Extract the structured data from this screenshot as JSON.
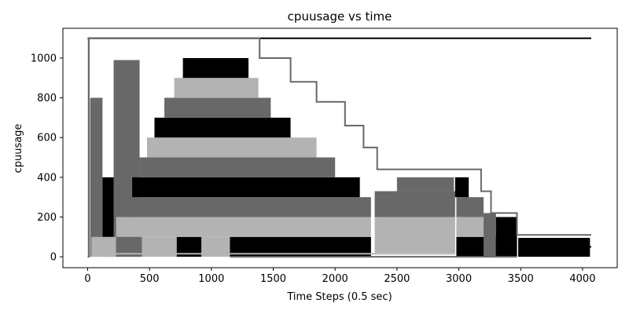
{
  "chart_data": {
    "type": "line",
    "title": "cpuusage vs time",
    "xlabel": "Time Steps (0.5 sec)",
    "ylabel": "cpuusage",
    "xlim": [
      -200,
      4280
    ],
    "ylim": [
      -55,
      1150
    ],
    "xticks": [
      0,
      500,
      1000,
      1500,
      2000,
      2500,
      3000,
      3500,
      4000
    ],
    "yticks": [
      0,
      200,
      400,
      600,
      800,
      1000
    ],
    "grid": false,
    "legend": "none",
    "colors": [
      "#000000",
      "#686868",
      "#b3b3b3"
    ],
    "series": [
      {
        "color": "#000000",
        "x": [
          0,
          4070
        ],
        "y": [
          1100,
          1100
        ]
      },
      {
        "color": "#686868",
        "x": [
          0,
          10,
          10,
          1390,
          1390,
          1640,
          1640,
          1850,
          1850,
          2080,
          2080,
          2230,
          2230,
          2340,
          2340,
          2960,
          2960,
          3180,
          3180,
          3260,
          3260,
          3470,
          3470,
          4070
        ],
        "y": [
          0,
          0,
          1100,
          1100,
          1000,
          1000,
          880,
          880,
          780,
          780,
          660,
          660,
          550,
          550,
          440,
          440,
          440,
          440,
          330,
          330,
          220,
          220,
          110,
          110
        ]
      },
      {
        "color": "#686868",
        "x": [
          1150,
          3470
        ],
        "y": [
          0,
          0
        ]
      },
      {
        "color": "#000000",
        "x": [
          3480,
          4070
        ],
        "y": [
          50,
          50
        ]
      },
      {
        "color": "#b3b3b3",
        "x": [
          40,
          2970
        ],
        "y": [
          15,
          15
        ]
      }
    ],
    "blocks": [
      {
        "color": "#b3b3b3",
        "x": [
          0,
          10
        ],
        "y": [
          0,
          1100
        ]
      },
      {
        "color": "#686868",
        "x": [
          20,
          120
        ],
        "y": [
          0,
          800
        ]
      },
      {
        "color": "#000000",
        "x": [
          120,
          210
        ],
        "y": [
          0,
          400
        ]
      },
      {
        "color": "#686868",
        "x": [
          210,
          420
        ],
        "y": [
          0,
          990
        ]
      },
      {
        "color": "#b3b3b3",
        "x": [
          30,
          230
        ],
        "y": [
          0,
          100
        ]
      },
      {
        "color": "#686868",
        "x": [
          230,
          440
        ],
        "y": [
          0,
          100
        ]
      },
      {
        "color": "#b3b3b3",
        "x": [
          440,
          720
        ],
        "y": [
          0,
          100
        ]
      },
      {
        "color": "#000000",
        "x": [
          720,
          920
        ],
        "y": [
          0,
          100
        ]
      },
      {
        "color": "#b3b3b3",
        "x": [
          920,
          1150
        ],
        "y": [
          0,
          100
        ]
      },
      {
        "color": "#000000",
        "x": [
          1150,
          2290
        ],
        "y": [
          0,
          100
        ]
      },
      {
        "color": "#b3b3b3",
        "x": [
          230,
          2290
        ],
        "y": [
          100,
          200
        ]
      },
      {
        "color": "#686868",
        "x": [
          300,
          2290
        ],
        "y": [
          200,
          300
        ]
      },
      {
        "color": "#000000",
        "x": [
          360,
          2200
        ],
        "y": [
          300,
          400
        ]
      },
      {
        "color": "#686868",
        "x": [
          420,
          2000
        ],
        "y": [
          400,
          500
        ]
      },
      {
        "color": "#b3b3b3",
        "x": [
          480,
          1850
        ],
        "y": [
          500,
          600
        ]
      },
      {
        "color": "#000000",
        "x": [
          540,
          1640
        ],
        "y": [
          600,
          700
        ]
      },
      {
        "color": "#686868",
        "x": [
          620,
          1480
        ],
        "y": [
          700,
          800
        ]
      },
      {
        "color": "#b3b3b3",
        "x": [
          700,
          1380
        ],
        "y": [
          800,
          900
        ]
      },
      {
        "color": "#000000",
        "x": [
          770,
          1300
        ],
        "y": [
          900,
          1000
        ]
      },
      {
        "color": "#b3b3b3",
        "x": [
          2320,
          2970
        ],
        "y": [
          20,
          200
        ]
      },
      {
        "color": "#686868",
        "x": [
          2320,
          2970
        ],
        "y": [
          200,
          330
        ]
      },
      {
        "color": "#686868",
        "x": [
          2500,
          2960
        ],
        "y": [
          330,
          400
        ]
      },
      {
        "color": "#000000",
        "x": [
          2980,
          3470
        ],
        "y": [
          0,
          100
        ]
      },
      {
        "color": "#b3b3b3",
        "x": [
          2980,
          3200
        ],
        "y": [
          100,
          200
        ]
      },
      {
        "color": "#686868",
        "x": [
          2980,
          3200
        ],
        "y": [
          200,
          300
        ]
      },
      {
        "color": "#000000",
        "x": [
          2970,
          3080
        ],
        "y": [
          300,
          400
        ]
      },
      {
        "color": "#686868",
        "x": [
          3200,
          3300
        ],
        "y": [
          0,
          220
        ]
      },
      {
        "color": "#000000",
        "x": [
          3300,
          3470
        ],
        "y": [
          0,
          200
        ]
      },
      {
        "color": "#000000",
        "x": [
          3480,
          4060
        ],
        "y": [
          0,
          95
        ]
      }
    ]
  }
}
